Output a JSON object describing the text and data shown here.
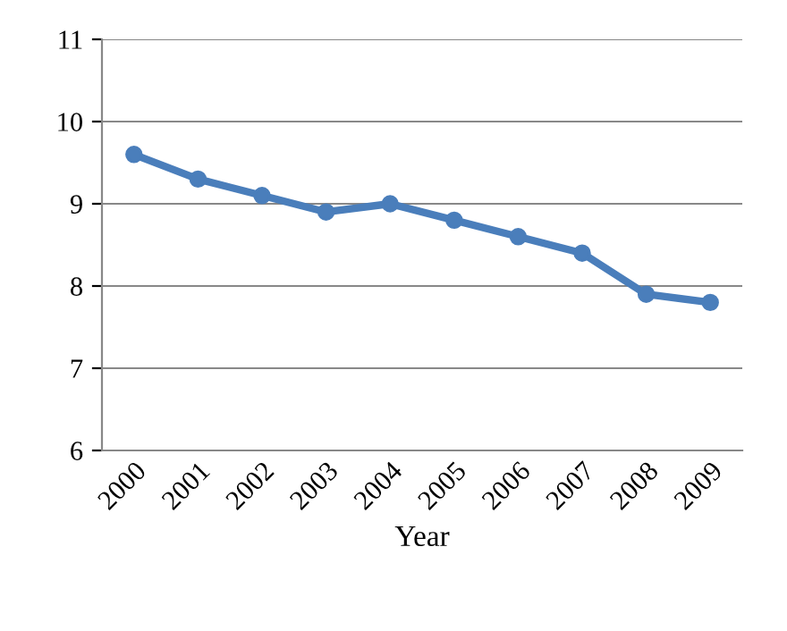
{
  "chart_data": {
    "type": "line",
    "xlabel": "Year",
    "categories": [
      "2000",
      "2001",
      "2002",
      "2003",
      "2004",
      "2005",
      "2006",
      "2007",
      "2008",
      "2009"
    ],
    "series": [
      {
        "color": "#4a7ebb",
        "values": [
          9.6,
          9.3,
          9.1,
          8.9,
          9.0,
          8.8,
          8.6,
          8.4,
          7.9,
          7.8
        ]
      }
    ],
    "ylim": [
      6,
      11
    ],
    "yticks": [
      6,
      7,
      8,
      9,
      10,
      11
    ],
    "grid": "y",
    "marker": "circle",
    "line_style": "solid",
    "legend": false
  }
}
